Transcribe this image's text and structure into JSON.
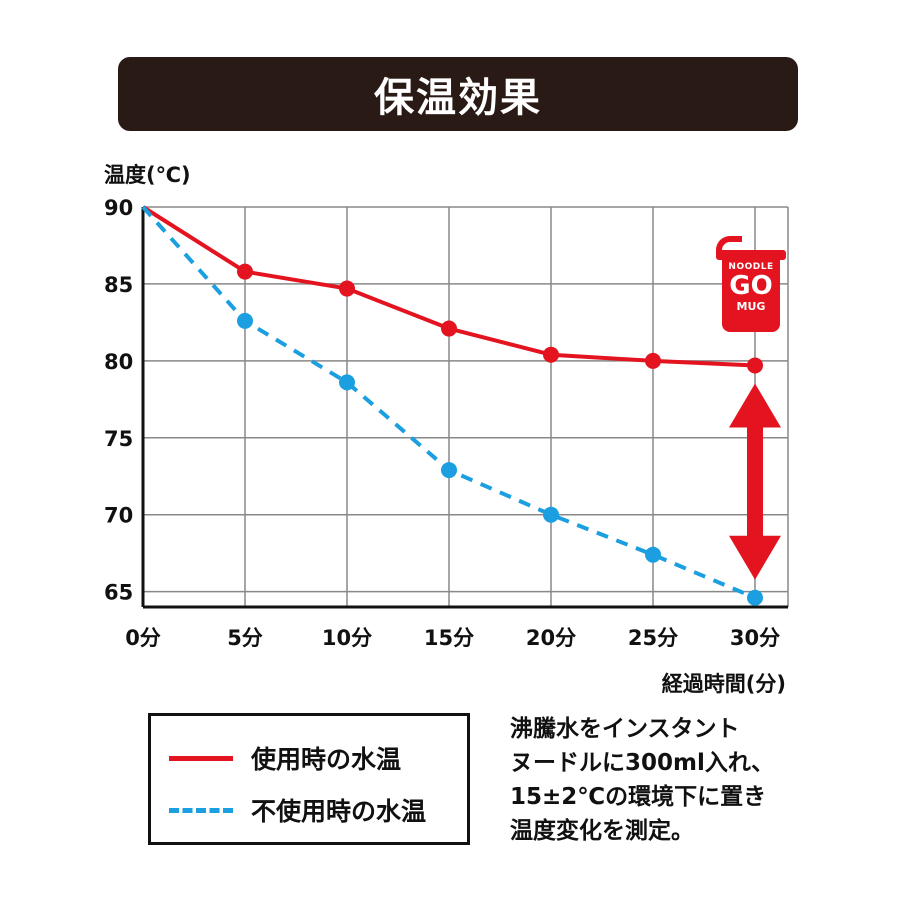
{
  "title": "保温効果",
  "chart_data": {
    "type": "line",
    "ylabel": "温度(℃)",
    "xlabel": "経過時間(分)",
    "x": [
      "0分",
      "5分",
      "10分",
      "15分",
      "20分",
      "25分",
      "30分"
    ],
    "x_values": [
      0,
      5,
      10,
      15,
      20,
      25,
      30
    ],
    "ylim": [
      64,
      90
    ],
    "yticks": [
      90,
      85,
      80,
      75,
      70,
      65
    ],
    "grid": true,
    "series": [
      {
        "name": "使用時の水温",
        "color": "#e3141f",
        "style": "solid",
        "values": [
          90,
          85.8,
          84.7,
          82.1,
          80.4,
          80.0,
          79.7
        ]
      },
      {
        "name": "不使用時の水温",
        "color": "#1b9fe0",
        "style": "dashed",
        "values": [
          90,
          82.6,
          78.6,
          72.9,
          70.0,
          67.4,
          64.6
        ]
      }
    ]
  },
  "legend": {
    "used_label": "使用時の水温",
    "unused_label": "不使用時の水温"
  },
  "note_lines": [
    "沸騰水をインスタント",
    "ヌードルに300ml入れ、",
    "15±2℃の環境下に置き",
    "温度変化を測定。"
  ],
  "logo": {
    "line1": "NOODLE",
    "line2": "GO",
    "line3": "MUG",
    "color": "#e3141f"
  }
}
